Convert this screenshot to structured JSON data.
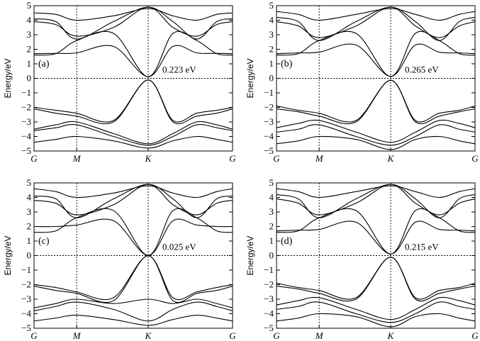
{
  "chart_data": [
    {
      "type": "line",
      "panel_label": "(a)",
      "annotation": "0.223 eV",
      "gap": 0.223,
      "ylabel": "Energy/eV",
      "ylim": [
        -5,
        5
      ],
      "yticks": [
        -5,
        -4,
        -3,
        -2,
        -1,
        0,
        1,
        2,
        3,
        4,
        5
      ],
      "x_ticks": [
        "G",
        "M",
        "K",
        "G"
      ],
      "fermi_level": 0,
      "grid": "dotted lines at E=0 and at M and K",
      "series": [
        {
          "values": [
            1.7,
            1.72,
            1.75,
            2.2,
            0.112
          ]
        },
        {
          "values": [
            1.6,
            1.7,
            2.6,
            3.1,
            0.112
          ]
        },
        {
          "values": [
            -2.0,
            -2.2,
            -2.4,
            -2.9,
            -0.112
          ]
        },
        {
          "values": [
            -2.1,
            -2.4,
            -2.6,
            -3.0,
            -0.112
          ]
        },
        {
          "values": [
            3.9,
            3.7,
            2.9,
            3.5,
            4.9
          ]
        },
        {
          "values": [
            4.1,
            3.9,
            2.7,
            3.9,
            4.9
          ]
        },
        {
          "values": [
            -3.5,
            -3.2,
            -3.0,
            -3.8,
            -4.5
          ]
        },
        {
          "values": [
            -3.6,
            -3.4,
            -3.2,
            -4.0,
            -4.6
          ]
        },
        {
          "values": [
            4.5,
            4.4,
            4.0,
            4.3,
            4.8
          ]
        },
        {
          "values": [
            -4.4,
            -4.2,
            -4.0,
            -4.3,
            -4.8
          ]
        }
      ]
    },
    {
      "type": "line",
      "panel_label": "(b)",
      "annotation": "0.265 eV",
      "gap": 0.265,
      "ylabel": "Energy/eV",
      "ylim": [
        -5,
        5
      ],
      "yticks": [
        -5,
        -4,
        -3,
        -2,
        -1,
        0,
        1,
        2,
        3,
        4,
        5
      ],
      "x_ticks": [
        "G",
        "M",
        "K",
        "G"
      ],
      "fermi_level": 0,
      "grid": "dotted lines at E=0 and at M and K",
      "series": [
        {
          "values": [
            1.6,
            1.7,
            2.6,
            3.1,
            0.133
          ]
        },
        {
          "values": [
            1.7,
            1.75,
            1.8,
            2.3,
            0.133
          ]
        },
        {
          "values": [
            -1.9,
            -2.2,
            -2.4,
            -2.9,
            -0.133
          ]
        },
        {
          "values": [
            -2.1,
            -2.3,
            -2.6,
            -3.0,
            -0.133
          ]
        },
        {
          "values": [
            3.9,
            3.6,
            2.8,
            3.6,
            4.9
          ]
        },
        {
          "values": [
            4.2,
            3.9,
            2.6,
            3.9,
            4.9
          ]
        },
        {
          "values": [
            -3.4,
            -3.1,
            -2.9,
            -3.7,
            -4.4
          ]
        },
        {
          "values": [
            -3.7,
            -3.5,
            -3.2,
            -4.0,
            -4.6
          ]
        },
        {
          "values": [
            4.6,
            4.4,
            4.0,
            4.4,
            4.8
          ]
        },
        {
          "values": [
            -4.5,
            -4.3,
            -4.0,
            -4.2,
            -4.9
          ]
        }
      ]
    },
    {
      "type": "line",
      "panel_label": "(c)",
      "annotation": "0.025 eV",
      "gap": 0.025,
      "ylabel": "Energy/eV",
      "ylim": [
        -5,
        5
      ],
      "yticks": [
        -5,
        -4,
        -3,
        -2,
        -1,
        0,
        1,
        2,
        3,
        4,
        5
      ],
      "x_ticks": [
        "G",
        "M",
        "K",
        "G"
      ],
      "fermi_level": 0,
      "grid": "dotted lines at E=0 and at M and K",
      "series": [
        {
          "values": [
            1.6,
            1.7,
            2.6,
            3.1,
            0.012
          ]
        },
        {
          "values": [
            2.0,
            2.0,
            2.1,
            2.4,
            0.012
          ]
        },
        {
          "values": [
            -2.0,
            -2.2,
            -2.5,
            -2.9,
            -0.012
          ]
        },
        {
          "values": [
            -2.1,
            -2.4,
            -2.6,
            -3.1,
            -0.012
          ]
        },
        {
          "values": [
            3.8,
            3.6,
            2.8,
            3.5,
            4.9
          ]
        },
        {
          "values": [
            4.1,
            3.9,
            2.6,
            3.9,
            4.9
          ]
        },
        {
          "values": [
            -3.6,
            -3.3,
            -3.0,
            -3.3,
            -3.0
          ]
        },
        {
          "values": [
            -3.8,
            -3.5,
            -3.2,
            -3.7,
            -4.5
          ]
        },
        {
          "values": [
            4.6,
            4.4,
            4.0,
            4.3,
            4.8
          ]
        },
        {
          "values": [
            -4.5,
            -4.3,
            -4.1,
            -4.4,
            -4.8
          ]
        }
      ]
    },
    {
      "type": "line",
      "panel_label": "(d)",
      "annotation": "0.215 eV",
      "gap": 0.215,
      "ylabel": "Energy/eV",
      "ylim": [
        -5,
        5
      ],
      "yticks": [
        -5,
        -4,
        -3,
        -2,
        -1,
        0,
        1,
        2,
        3,
        4,
        5
      ],
      "x_ticks": [
        "G",
        "M",
        "K",
        "G"
      ],
      "fermi_level": 0,
      "grid": "dotted lines at E=0 and at M and K",
      "series": [
        {
          "values": [
            1.6,
            1.7,
            2.6,
            3.1,
            0.108
          ]
        },
        {
          "values": [
            1.7,
            1.75,
            1.8,
            2.3,
            0.108
          ]
        },
        {
          "values": [
            -1.9,
            -2.2,
            -2.4,
            -2.9,
            -0.108
          ]
        },
        {
          "values": [
            -2.1,
            -2.3,
            -2.6,
            -3.0,
            -0.108
          ]
        },
        {
          "values": [
            3.9,
            3.6,
            2.8,
            3.6,
            4.9
          ]
        },
        {
          "values": [
            4.2,
            3.9,
            2.6,
            3.9,
            4.9
          ]
        },
        {
          "values": [
            -3.4,
            -3.1,
            -2.9,
            -3.7,
            -4.4
          ]
        },
        {
          "values": [
            -3.7,
            -3.5,
            -3.2,
            -4.0,
            -4.6
          ]
        },
        {
          "values": [
            4.6,
            4.4,
            4.0,
            4.4,
            4.8
          ]
        },
        {
          "values": [
            -4.5,
            -4.3,
            -4.0,
            -4.2,
            -4.9
          ]
        }
      ]
    }
  ]
}
